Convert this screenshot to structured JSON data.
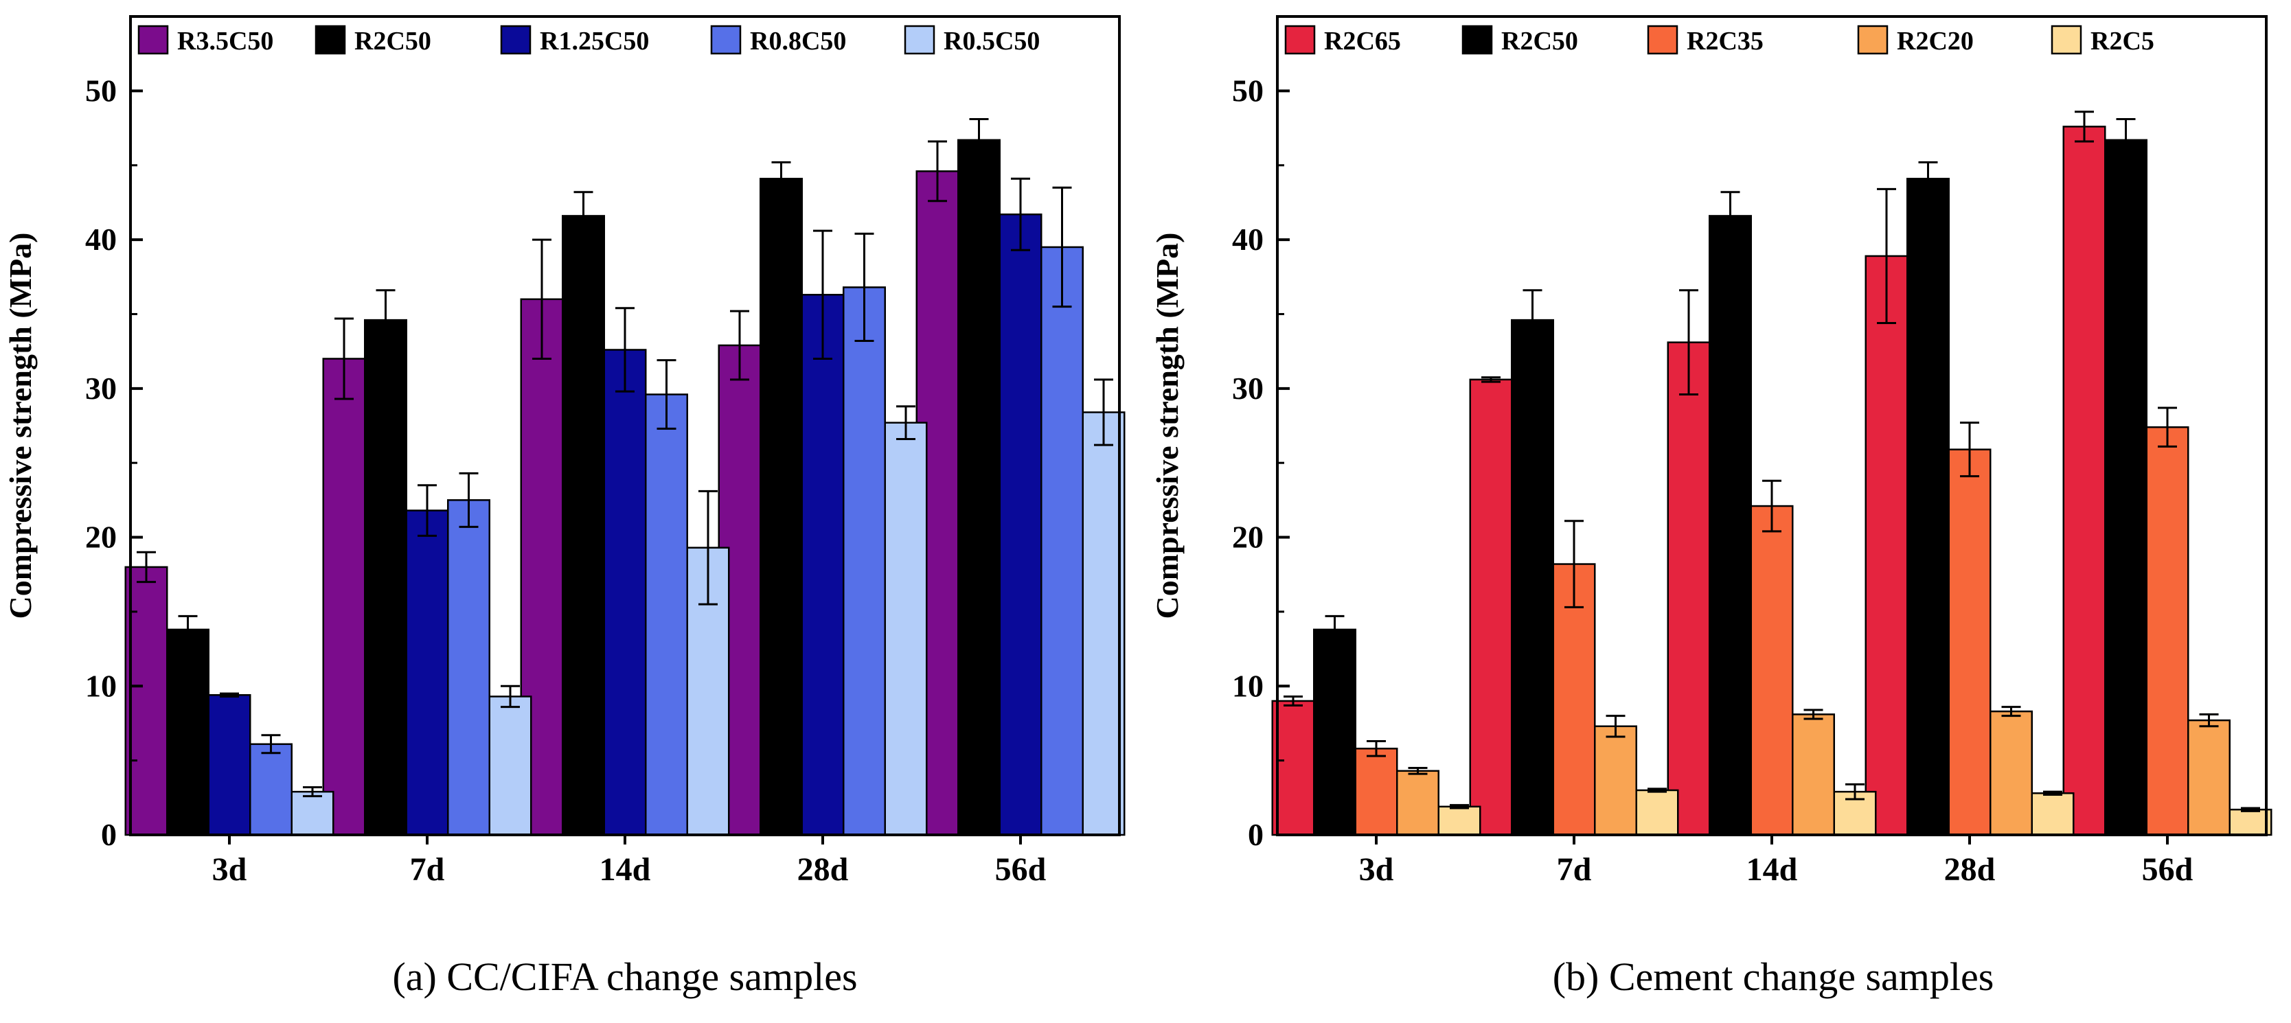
{
  "chart_data": [
    {
      "type": "bar",
      "caption": "(a) CC/CIFA change samples",
      "title": "",
      "xlabel": "",
      "ylabel": "Compressive strength (MPa)",
      "ylim": [
        0,
        55
      ],
      "yticks": [
        0,
        10,
        20,
        30,
        40,
        50
      ],
      "grid": false,
      "legend_position": "top",
      "categories": [
        "3d",
        "7d",
        "14d",
        "28d",
        "56d"
      ],
      "series": [
        {
          "name": "R3.5C50",
          "color": "#7b0c8c",
          "values": [
            18.0,
            32.0,
            36.0,
            32.9,
            44.6
          ],
          "errors": [
            1.0,
            2.7,
            4.0,
            2.3,
            2.0
          ]
        },
        {
          "name": "R2C50",
          "color": "#000000",
          "values": [
            13.8,
            34.6,
            41.6,
            44.1,
            46.7
          ],
          "errors": [
            0.9,
            2.0,
            1.6,
            1.1,
            1.4
          ]
        },
        {
          "name": "R1.25C50",
          "color": "#0a0a99",
          "values": [
            9.4,
            21.8,
            32.6,
            36.3,
            41.7
          ],
          "errors": [
            0.1,
            1.7,
            2.8,
            4.3,
            2.4
          ]
        },
        {
          "name": "R0.8C50",
          "color": "#5670e8",
          "values": [
            6.1,
            22.5,
            29.6,
            36.8,
            39.5
          ],
          "errors": [
            0.6,
            1.8,
            2.3,
            3.6,
            4.0
          ]
        },
        {
          "name": "R0.5C50",
          "color": "#b3cdf9",
          "values": [
            2.9,
            9.3,
            19.3,
            27.7,
            28.4
          ],
          "errors": [
            0.3,
            0.7,
            3.8,
            1.1,
            2.2
          ]
        }
      ]
    },
    {
      "type": "bar",
      "caption": "(b) Cement change samples",
      "title": "",
      "xlabel": "",
      "ylabel": "Compressive strength (MPa)",
      "ylim": [
        0,
        55
      ],
      "yticks": [
        0,
        10,
        20,
        30,
        40,
        50
      ],
      "grid": false,
      "legend_position": "top",
      "categories": [
        "3d",
        "7d",
        "14d",
        "28d",
        "56d"
      ],
      "series": [
        {
          "name": "R2C65",
          "color": "#e5243f",
          "values": [
            9.0,
            30.6,
            33.1,
            38.9,
            47.6
          ],
          "errors": [
            0.3,
            0.15,
            3.5,
            4.5,
            1.0
          ]
        },
        {
          "name": "R2C50",
          "color": "#000000",
          "values": [
            13.8,
            34.6,
            41.6,
            44.1,
            46.7
          ],
          "errors": [
            0.9,
            2.0,
            1.6,
            1.1,
            1.4
          ]
        },
        {
          "name": "R2C35",
          "color": "#f7673a",
          "values": [
            5.8,
            18.2,
            22.1,
            25.9,
            27.4
          ],
          "errors": [
            0.5,
            2.9,
            1.7,
            1.8,
            1.3
          ]
        },
        {
          "name": "R2C20",
          "color": "#f9a453",
          "values": [
            4.3,
            7.3,
            8.1,
            8.3,
            7.7
          ],
          "errors": [
            0.2,
            0.7,
            0.3,
            0.3,
            0.4
          ]
        },
        {
          "name": "R2C5",
          "color": "#fddc98",
          "values": [
            1.9,
            3.0,
            2.9,
            2.8,
            1.7
          ],
          "errors": [
            0.1,
            0.1,
            0.5,
            0.1,
            0.1
          ]
        }
      ]
    }
  ]
}
